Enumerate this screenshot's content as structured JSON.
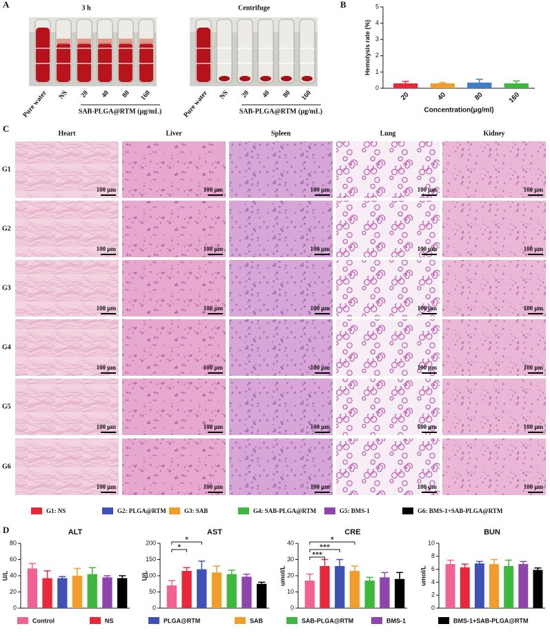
{
  "panel_a": {
    "letter": "A",
    "titles": [
      "3 h",
      "Centrifuge"
    ],
    "tube_labels": [
      "Pure water",
      "NS",
      "20",
      "40",
      "80",
      "160"
    ],
    "group_label": "SAB-PLGA@RTM (μg/mL)"
  },
  "panel_c": {
    "letter": "C",
    "organs": [
      "Heart",
      "Liver",
      "Spleen",
      "Lung",
      "Kidney"
    ],
    "groups": [
      "G1",
      "G2",
      "G3",
      "G4",
      "G5",
      "G6"
    ],
    "scale_bar": "100 μm",
    "legend": [
      "G1: NS",
      "G2: PLGA@RTM",
      "G3: SAB",
      "G4: SAB-PLGA@RTM",
      "G5: BMS-1",
      "G6: BMS-1+SAB-PLGA@RTM"
    ],
    "legend_colors": [
      "#e8283a",
      "#3f51b5",
      "#f39c2a",
      "#3cb93c",
      "#8e44ad",
      "#000000"
    ]
  },
  "panel_d": {
    "letter": "D",
    "legend": {
      "names": [
        "Control",
        "NS",
        "PLGA@RTM",
        "SAB",
        "SAB-PLGA@RTM",
        "BMS-1",
        "BMS-1+SAB-PLGA@RTM"
      ],
      "colors": [
        "#f06292",
        "#e8283a",
        "#3f51b5",
        "#f39c2a",
        "#3cb93c",
        "#8e44ad",
        "#000000"
      ]
    }
  },
  "chart_data": [
    {
      "type": "bar",
      "panel_label": "B",
      "categories": [
        "20",
        "40",
        "80",
        "160"
      ],
      "values": [
        0.3,
        0.3,
        0.35,
        0.3
      ],
      "errors": [
        0.12,
        0.05,
        0.2,
        0.15
      ],
      "colors": [
        "#e8283a",
        "#f39c2a",
        "#3f7fc4",
        "#3cb93c"
      ],
      "ylim": [
        0,
        5
      ],
      "yticks": [
        0,
        1,
        2,
        3,
        4,
        5
      ],
      "ylabel": "Hemolysis rate (%)",
      "xlabel": "Concentration(μg/ml)"
    },
    {
      "type": "bar",
      "title": "ALT",
      "values": [
        49,
        37,
        37,
        40,
        42,
        38,
        37
      ],
      "errors": [
        6,
        9,
        2,
        9,
        8,
        2,
        3
      ],
      "ylim": [
        0,
        80
      ],
      "yticks": [
        0,
        20,
        40,
        60,
        80
      ],
      "ylabel": "U/L"
    },
    {
      "type": "bar",
      "title": "AST",
      "values": [
        70,
        115,
        120,
        110,
        105,
        97,
        75
      ],
      "errors": [
        15,
        10,
        25,
        20,
        12,
        8,
        5
      ],
      "ylim": [
        0,
        200
      ],
      "yticks": [
        0,
        50,
        100,
        150,
        200
      ],
      "ylabel": "U/L",
      "annotations": [
        {
          "between": [
            0,
            2
          ],
          "label": "*"
        },
        {
          "between": [
            0,
            1
          ],
          "label": "*"
        }
      ]
    },
    {
      "type": "bar",
      "title": "CRE",
      "values": [
        17,
        26,
        26,
        23,
        17,
        19,
        18
      ],
      "errors": [
        4,
        4,
        4,
        3,
        2,
        3,
        4
      ],
      "ylim": [
        0,
        40
      ],
      "yticks": [
        0,
        10,
        20,
        30,
        40
      ],
      "ylabel": "umol/L",
      "annotations": [
        {
          "between": [
            0,
            3
          ],
          "label": "*"
        },
        {
          "between": [
            0,
            2
          ],
          "label": "***"
        },
        {
          "between": [
            0,
            1
          ],
          "label": "***"
        }
      ]
    },
    {
      "type": "bar",
      "title": "BUN",
      "values": [
        6.8,
        6.3,
        6.9,
        6.8,
        6.5,
        6.8,
        5.9
      ],
      "errors": [
        0.6,
        0.5,
        0.3,
        0.7,
        0.9,
        0.4,
        0.3
      ],
      "ylim": [
        0,
        10
      ],
      "yticks": [
        0,
        2,
        4,
        6,
        8,
        10
      ],
      "ylabel": "umol/L"
    }
  ]
}
